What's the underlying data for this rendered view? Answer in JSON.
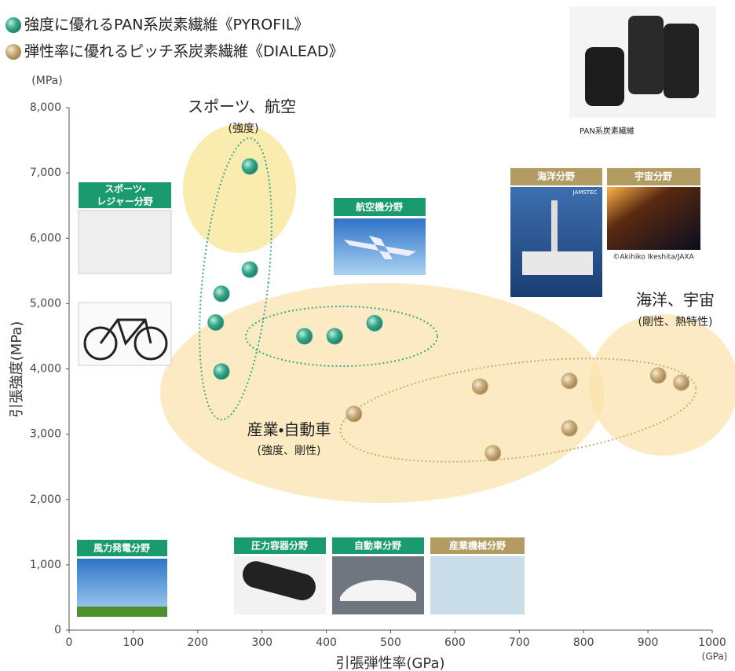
{
  "chart_data": {
    "type": "scatter",
    "xlabel": "引張弾性率(GPa)",
    "ylabel": "引張強度(MPa)",
    "x_unit": "(GPa)",
    "y_unit": "(MPa)",
    "xlim": [
      0,
      1000
    ],
    "ylim": [
      0,
      8000
    ],
    "xticks": [
      0,
      100,
      200,
      300,
      400,
      500,
      600,
      700,
      800,
      900,
      1000
    ],
    "yticks": [
      0,
      {
        "value": 1000,
        "label": "1,000"
      },
      {
        "value": 2000,
        "label": "2,000"
      },
      {
        "value": 3000,
        "label": "3,000"
      },
      {
        "value": 4000,
        "label": "4,000"
      },
      {
        "value": 5000,
        "label": "5,000"
      },
      {
        "value": 6000,
        "label": "6,000"
      },
      {
        "value": 7000,
        "label": "7,000"
      },
      {
        "value": 8000,
        "label": "8,000"
      }
    ],
    "series": [
      {
        "name": "強度に優れるPAN系炭素繊維《PYROFIL》",
        "color": "#3aa88c",
        "x": [
          281,
          281,
          237,
          228,
          237,
          366,
          413,
          475
        ],
        "values": [
          7100,
          5520,
          5150,
          4710,
          3960,
          4500,
          4500,
          4700
        ]
      },
      {
        "name": "弾性率に優れるピッチ系炭素繊維《DIALEAD》",
        "color": "#c8ab78",
        "x": [
          443,
          639,
          659,
          778,
          778,
          916,
          952
        ],
        "values": [
          3310,
          3730,
          2710,
          3815,
          3090,
          3900,
          3790
        ]
      }
    ],
    "annotations": [
      "スポーツ、航空",
      "(強度)",
      "産業・自動車",
      "(強度、剛性)",
      "海洋、宇宙",
      "(剛性、熱特性)",
      "スポーツ・",
      "レジャー分野",
      "航空機分野",
      "海洋分野",
      "宇宙分野",
      "風力発電分野",
      "圧力容器分野",
      "自動車分野",
      "産業機械分野",
      "PAN系炭素繊維",
      "©Akihiko Ikeshita/JAXA",
      "JAMSTEC"
    ]
  }
}
